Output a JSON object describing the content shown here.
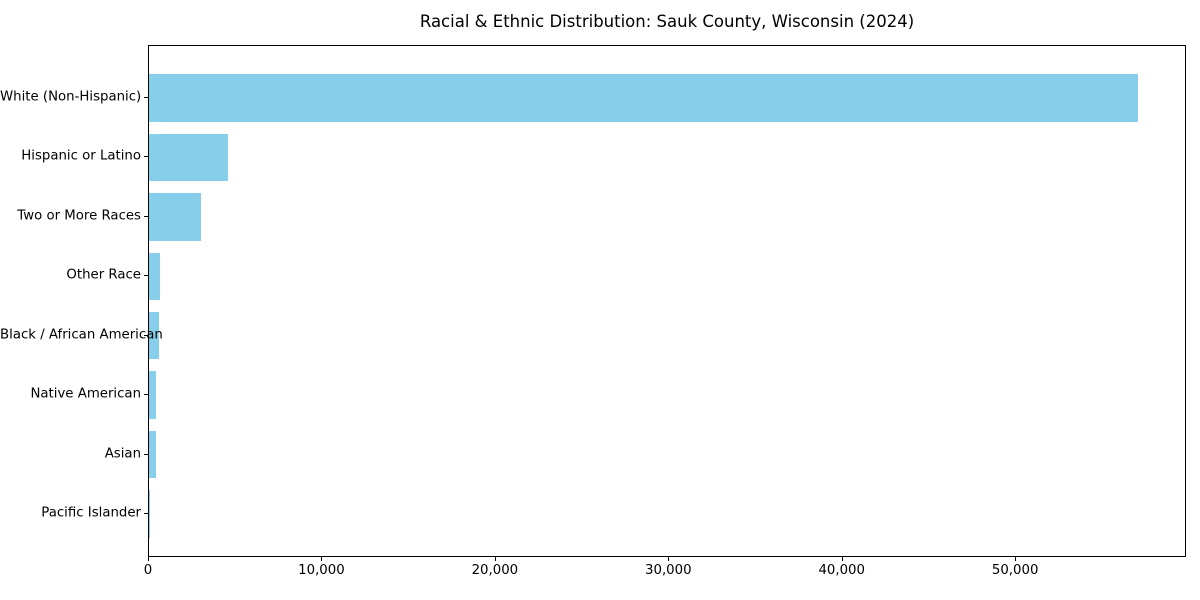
{
  "figure": {
    "title": "Racial & Ethnic Distribution: Sauk County, Wisconsin (2024)"
  },
  "chart_data": {
    "type": "bar",
    "orientation": "horizontal",
    "title": "Racial & Ethnic Distribution: Sauk County, Wisconsin (2024)",
    "categories": [
      "White (Non-Hispanic)",
      "Hispanic or Latino",
      "Two or More Races",
      "Other Race",
      "Black / African American",
      "Native American",
      "Asian",
      "Pacific Islander"
    ],
    "values": [
      57000,
      4550,
      3000,
      630,
      600,
      415,
      430,
      25
    ],
    "xlabel": "",
    "ylabel": "",
    "xlim": [
      0,
      59850
    ],
    "xticks": [
      0,
      10000,
      20000,
      30000,
      40000,
      50000
    ],
    "xtick_labels": [
      "0",
      "10,000",
      "20,000",
      "30,000",
      "40,000",
      "50,000"
    ],
    "bar_color": "#87CEEB",
    "grid": false,
    "legend": "none",
    "background": "#FFFFFF",
    "text_color": "#000000",
    "axis_color": "#000000"
  }
}
